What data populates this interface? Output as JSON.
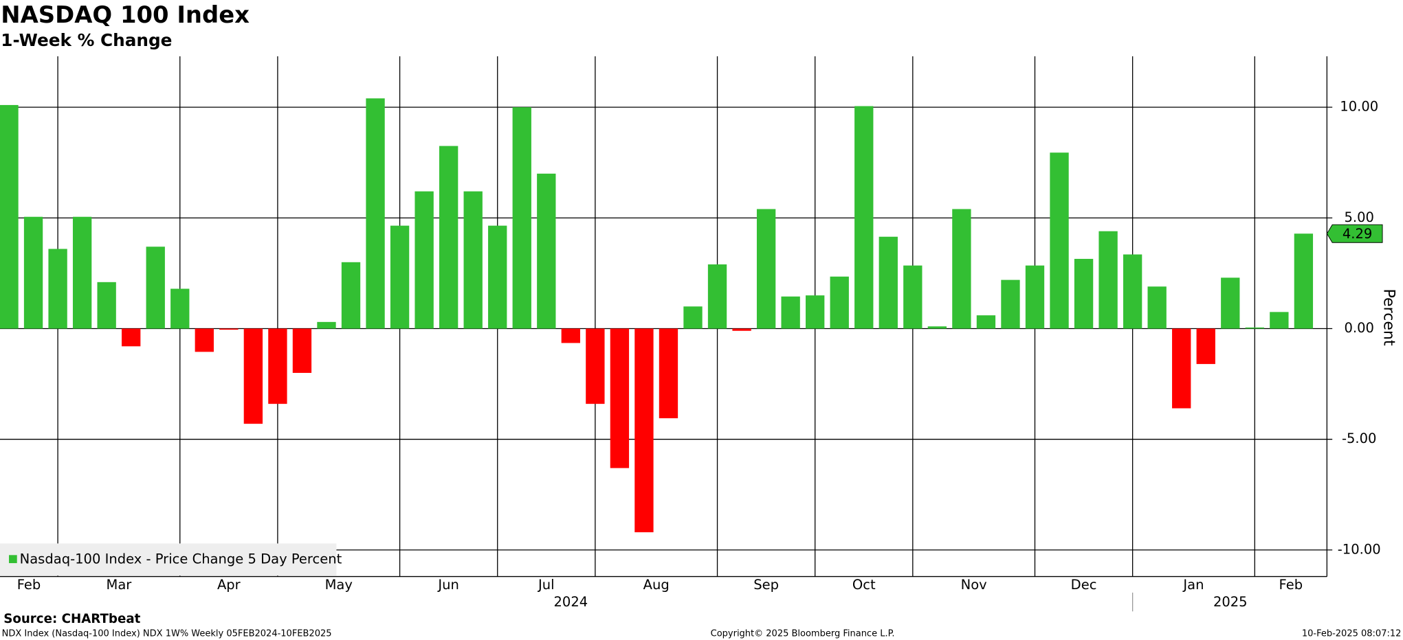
{
  "chart_data": {
    "type": "bar",
    "title": "NASDAQ 100 Index",
    "subtitle": "1-Week % Change",
    "y_label": "Percent",
    "source": "Source: CHARTbeat",
    "footer_left": "NDX Index (Nasdaq-100 Index) NDX 1W% Weekly 05FEB2024-10FEB2025",
    "footer_center": "Copyright© 2025 Bloomberg Finance L.P.",
    "footer_right": "10-Feb-2025 08:07:12",
    "categories": [
      "Feb",
      null,
      "Mar",
      null,
      null,
      null,
      null,
      "Apr",
      null,
      null,
      null,
      "May",
      null,
      null,
      null,
      null,
      "Jun",
      null,
      null,
      null,
      "Jul",
      null,
      null,
      null,
      "Aug",
      null,
      null,
      null,
      null,
      "Sep",
      null,
      null,
      null,
      "Oct",
      null,
      null,
      null,
      "Nov",
      null,
      null,
      null,
      null,
      "Dec",
      null,
      null,
      null,
      "Jan",
      null,
      null,
      null,
      null,
      "Feb",
      null,
      null
    ],
    "year_labels": [
      null,
      null,
      null,
      null,
      null,
      null,
      null,
      null,
      null,
      null,
      null,
      null,
      null,
      null,
      null,
      null,
      null,
      null,
      null,
      null,
      null,
      null,
      null,
      "2024",
      null,
      null,
      null,
      null,
      null,
      null,
      null,
      null,
      null,
      null,
      null,
      null,
      null,
      null,
      null,
      null,
      null,
      null,
      null,
      null,
      null,
      null,
      null,
      null,
      null,
      null,
      "2025",
      null,
      null,
      null
    ],
    "series": [
      {
        "name": "Nasdaq-100 Index - Price Change 5 Day Percent",
        "color": "#33bf33",
        "negative_color": "#ff0000",
        "values": [
          10.1,
          5.05,
          3.6,
          5.05,
          2.1,
          -0.8,
          3.7,
          1.8,
          -1.05,
          -0.05,
          -4.3,
          -3.4,
          -2.0,
          0.3,
          3.0,
          10.4,
          4.65,
          6.2,
          8.25,
          6.2,
          4.65,
          10.0,
          7.0,
          -0.65,
          -3.4,
          -6.3,
          -9.2,
          -4.05,
          1.0,
          2.9,
          -0.1,
          5.4,
          1.45,
          1.5,
          2.35,
          10.05,
          4.15,
          2.85,
          0.1,
          5.4,
          0.6,
          2.2,
          2.85,
          7.95,
          3.15,
          4.4,
          3.35,
          1.9,
          -3.6,
          -1.6,
          2.3,
          0.05,
          0.75,
          4.29
        ]
      }
    ],
    "ylim": [
      -11.2,
      12.3
    ],
    "yticks": [
      {
        "value": -10,
        "label": "-10.00"
      },
      {
        "value": -5,
        "label": "-5.00"
      },
      {
        "value": 0,
        "label": "0.00"
      },
      {
        "value": 5,
        "label": "5.00"
      },
      {
        "value": 10,
        "label": "10.00"
      }
    ],
    "grid": true
  }
}
